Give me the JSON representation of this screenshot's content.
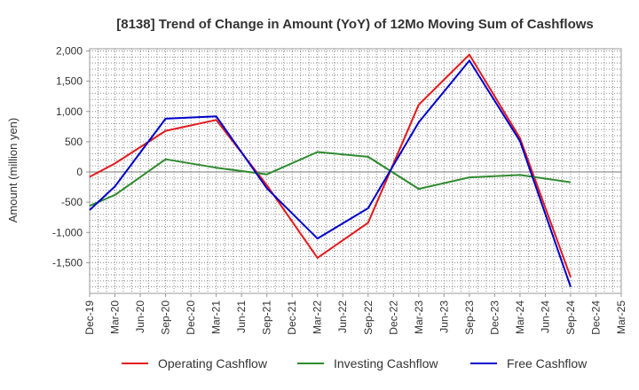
{
  "chart_data": {
    "type": "line",
    "title": "[8138]  Trend of Change in Amount (YoY) of 12Mo Moving Sum of Cashflows",
    "xlabel": "",
    "ylabel": "Amount (million yen)",
    "ylim": [
      -2000,
      2000
    ],
    "yticks": [
      {
        "value": 2000,
        "label": "2,000"
      },
      {
        "value": 1500,
        "label": "1,500"
      },
      {
        "value": 1000,
        "label": "1,000"
      },
      {
        "value": 500,
        "label": "500"
      },
      {
        "value": 0,
        "label": "0"
      },
      {
        "value": -500,
        "label": "-500"
      },
      {
        "value": -1000,
        "label": "-1,000"
      },
      {
        "value": -1500,
        "label": "-1,500"
      }
    ],
    "categories": [
      "Dec-19",
      "Mar-20",
      "Jun-20",
      "Sep-20",
      "Dec-20",
      "Mar-21",
      "Jun-21",
      "Sep-21",
      "Dec-21",
      "Mar-22",
      "Jun-22",
      "Sep-22",
      "Dec-22",
      "Mar-23",
      "Jun-23",
      "Sep-23",
      "Dec-23",
      "Mar-24",
      "Jun-24",
      "Sep-24",
      "Dec-24",
      "Mar-25"
    ],
    "series": [
      {
        "name": "Operating Cashflow",
        "color": "#e31a1c",
        "values": [
          -80,
          140,
          null,
          680,
          null,
          860,
          null,
          -220,
          null,
          -1420,
          null,
          -840,
          null,
          1110,
          null,
          1940,
          null,
          560,
          null,
          -1740,
          null,
          null
        ]
      },
      {
        "name": "Investing Cashflow",
        "color": "#2e8b2e",
        "values": [
          -560,
          -380,
          null,
          210,
          null,
          70,
          null,
          -40,
          null,
          330,
          null,
          250,
          null,
          -280,
          null,
          -90,
          null,
          -50,
          null,
          -170,
          null,
          null
        ]
      },
      {
        "name": "Free Cashflow",
        "color": "#0000cc",
        "values": [
          -630,
          -240,
          null,
          880,
          null,
          920,
          null,
          -270,
          null,
          -1100,
          null,
          -600,
          null,
          820,
          null,
          1840,
          null,
          510,
          null,
          -1900,
          null,
          null
        ]
      }
    ],
    "grid": true,
    "legend_position": "bottom"
  }
}
